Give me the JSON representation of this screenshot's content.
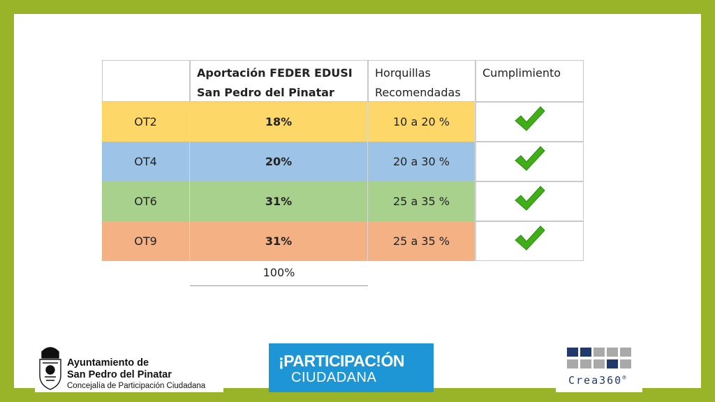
{
  "table": {
    "headers": {
      "blank": "",
      "aportacion_line1": "Aportación FEDER EDUSI",
      "aportacion_line2": "San Pedro del Pinatar",
      "horquillas_line1": "Horquillas",
      "horquillas_line2": "Recomendadas",
      "cumplimiento": "Cumplimiento"
    },
    "rows": [
      {
        "ot": "OT2",
        "aportacion": "18%",
        "horquilla": "10 a 20 %",
        "color": "#fdd868",
        "complies": true
      },
      {
        "ot": "OT4",
        "aportacion": "20%",
        "horquilla": "20 a 30 %",
        "color": "#9dc3e6",
        "complies": true
      },
      {
        "ot": "OT6",
        "aportacion": "31%",
        "horquilla": "25 a 35 %",
        "color": "#a9d18e",
        "complies": true
      },
      {
        "ot": "OT9",
        "aportacion": "31%",
        "horquilla": "25 a 35 %",
        "color": "#f4b183",
        "complies": true
      }
    ],
    "total": "100%"
  },
  "logos": {
    "ayuntamiento": {
      "line1": "Ayuntamiento de",
      "line2": "San Pedro del Pinatar",
      "line3": "Concejalía de Participación Ciudadana"
    },
    "participacion": {
      "line1": "¡PARTICIPAC!ÓN",
      "line2": "CIUDADANA"
    },
    "crea360": {
      "text": "Crea360",
      "mark": "®"
    }
  },
  "colors": {
    "frame": "#9ab42a",
    "check": "#3fae17",
    "participacion_bg": "#1e96d5"
  },
  "icons": {
    "check": "checkmark-icon",
    "crest": "coat-of-arms-icon",
    "crea_grid": "squares-grid-icon"
  }
}
